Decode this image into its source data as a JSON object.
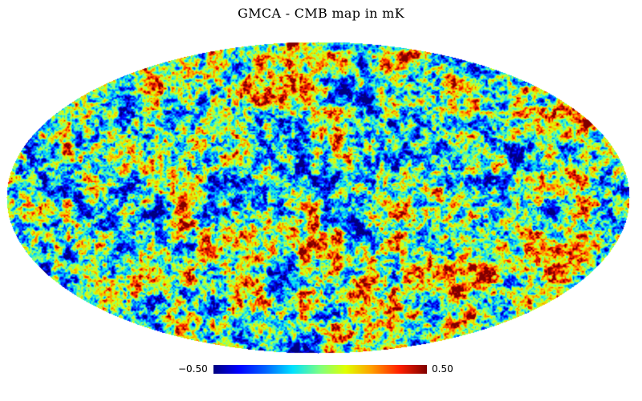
{
  "title": "GMCA - CMB map in mK",
  "projection": "mollweide",
  "colormap": {
    "name": "jet",
    "stops": [
      "#00007f",
      "#0000ff",
      "#0060ff",
      "#00e0ff",
      "#7fff7f",
      "#e0ff00",
      "#ffa000",
      "#ff2000",
      "#7f0000"
    ]
  },
  "colorbar": {
    "min_label": "−0.50",
    "max_label": "0.50",
    "min_value": -0.5,
    "max_value": 0.5
  }
}
